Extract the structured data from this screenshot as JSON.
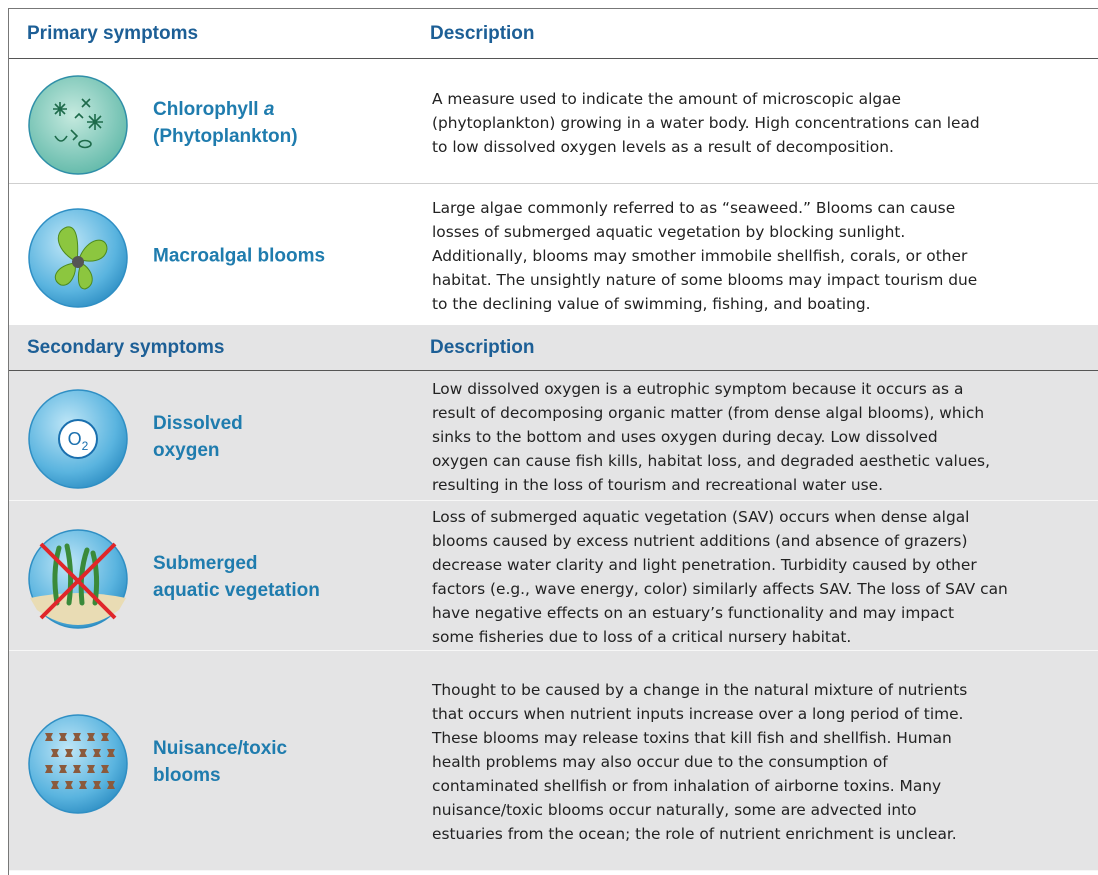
{
  "sections": [
    {
      "header": {
        "left": "Primary symptoms",
        "right": "Description"
      },
      "rows": [
        {
          "name_lines": [
            [
              "Chlorophyll ",
              {
                "text": "a",
                "style": "italic"
              }
            ],
            [
              "(Phytoplankton)"
            ]
          ],
          "description_lines": [
            "A measure used to indicate the amount of microscopic algae",
            "(phytoplankton) growing in a water body. High concentrations can lead",
            "to low dissolved oxygen levels as a result of decomposition."
          ]
        },
        {
          "name_lines": [
            [
              "Macroalgal blooms"
            ]
          ],
          "description_lines": [
            "Large algae commonly referred to as “seaweed.”  Blooms can cause",
            "losses of submerged aquatic vegetation by blocking sunlight.",
            "Additionally, blooms may smother immobile shellfish, corals, or other",
            "habitat. The unsightly nature of some blooms may impact tourism due",
            "to the declining value of swimming, fishing, and boating."
          ]
        }
      ]
    },
    {
      "header": {
        "left": "Secondary symptoms",
        "right": "Description"
      },
      "rows": [
        {
          "name_lines": [
            [
              "Dissolved"
            ],
            [
              "oxygen"
            ]
          ],
          "icon_text": [
            "O",
            "2"
          ],
          "description_lines": [
            "Low dissolved oxygen is a eutrophic symptom because it occurs as a",
            "result of decomposing organic matter (from dense algal blooms), which",
            "sinks to the bottom and uses oxygen during decay. Low dissolved",
            "oxygen can cause fish kills, habitat loss, and degraded aesthetic values,",
            "resulting in the loss of tourism and recreational water use."
          ]
        },
        {
          "name_lines": [
            [
              "Submerged"
            ],
            [
              "aquatic vegetation"
            ]
          ],
          "description_lines": [
            "Loss of submerged aquatic vegetation (SAV) occurs when dense algal",
            "blooms caused by excess nutrient additions (and absence of grazers)",
            "decrease water clarity and light penetration. Turbidity caused by other",
            "factors (e.g., wave energy, color) similarly affects SAV. The loss of SAV can",
            "have negative effects on an estuary’s functionality and may impact",
            "some fisheries due to loss of a critical nursery habitat."
          ]
        },
        {
          "name_lines": [
            [
              "Nuisance/toxic"
            ],
            [
              "blooms"
            ]
          ],
          "description_lines": [
            "Thought to be caused by a change in the natural mixture of nutrients",
            "that occurs when nutrient inputs increase over a long period of time.",
            "These blooms may release toxins that kill fish and shellfish. Human",
            "health problems may also occur due to the consumption of",
            "contaminated shellfish or from inhalation of airborne toxins. Many",
            "nuisance/toxic blooms occur naturally, some are advected into",
            "estuaries from the ocean; the role of nutrient enrichment is unclear."
          ]
        }
      ]
    }
  ]
}
